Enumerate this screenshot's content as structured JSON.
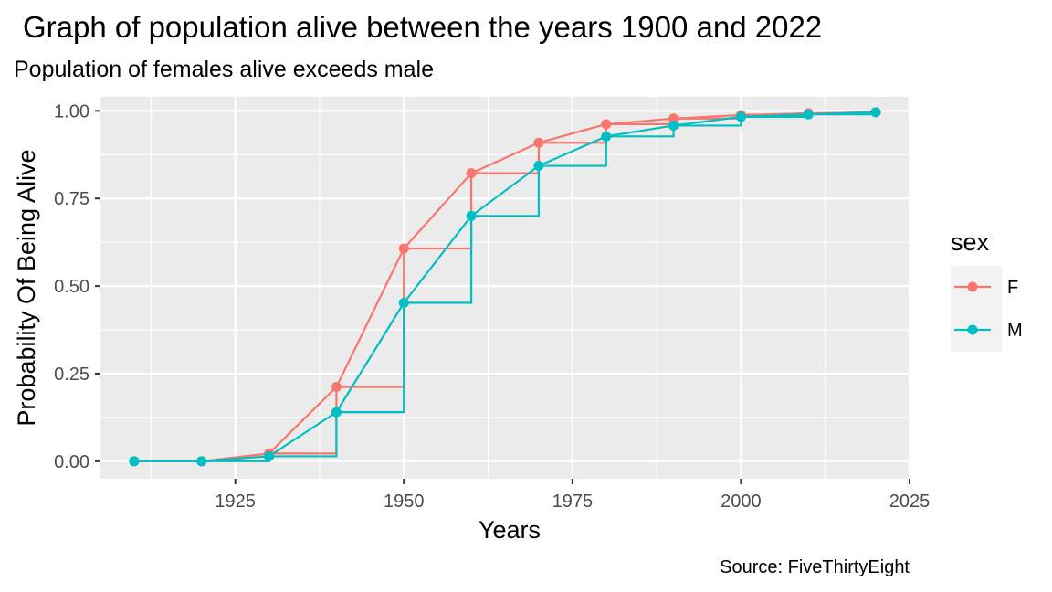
{
  "chart_data": {
    "type": "line",
    "title": "Graph of population alive between the years 1900 and 2022",
    "subtitle": "Population of females alive exceeds male",
    "caption": "Source: FiveThirtyEight",
    "xlabel": "Years",
    "ylabel": "Probability Of Being Alive",
    "xlim": [
      1905,
      2025
    ],
    "ylim": [
      -0.05,
      1.04
    ],
    "x_ticks": [
      1925,
      1950,
      1975,
      2000,
      2025
    ],
    "y_ticks": [
      0.0,
      0.25,
      0.5,
      0.75,
      1.0
    ],
    "x_tick_labels": [
      "1925",
      "1950",
      "1975",
      "2000",
      "2025"
    ],
    "y_tick_labels": [
      "0.00",
      "0.25",
      "0.50",
      "0.75",
      "1.00"
    ],
    "grid": true,
    "legend": {
      "title": "sex",
      "position": "right"
    },
    "x": [
      1910,
      1920,
      1930,
      1940,
      1950,
      1960,
      1970,
      1980,
      1990,
      2000,
      2010,
      2020
    ],
    "series": [
      {
        "name": "F",
        "color": "#F8766D",
        "values": [
          0.0,
          0.0,
          0.022,
          0.212,
          0.607,
          0.822,
          0.909,
          0.962,
          0.978,
          0.988,
          0.993,
          0.996
        ]
      },
      {
        "name": "M",
        "color": "#00BFC4",
        "values": [
          0.0,
          0.0,
          0.014,
          0.14,
          0.452,
          0.7,
          0.843,
          0.927,
          0.958,
          0.983,
          0.99,
          0.996
        ]
      }
    ]
  }
}
